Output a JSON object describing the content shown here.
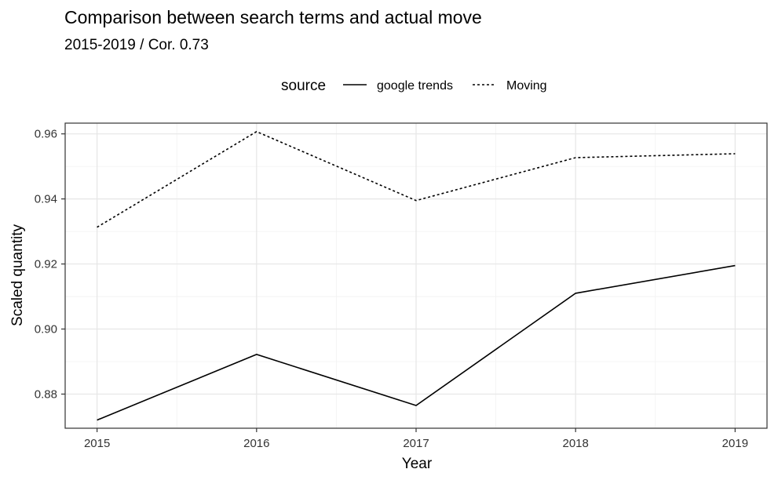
{
  "chart_data": {
    "type": "line",
    "title": "Comparison between search terms and actual move",
    "subtitle": "2015-2019 / Cor. 0.73",
    "xlabel": "Year",
    "ylabel": "Scaled quantity",
    "x": [
      2015,
      2016,
      2017,
      2018,
      2019
    ],
    "x_tick_labels": [
      "2015",
      "2016",
      "2017",
      "2018",
      "2019"
    ],
    "y_ticks": [
      0.88,
      0.9,
      0.92,
      0.94,
      0.96
    ],
    "y_tick_labels": [
      "0.88",
      "0.90",
      "0.92",
      "0.94",
      "0.96"
    ],
    "xlim": [
      2014.8,
      2019.2
    ],
    "ylim": [
      0.8695,
      0.9633
    ],
    "grid": true,
    "legend": {
      "title": "source",
      "position": "top"
    },
    "series": [
      {
        "name": "google trends",
        "line_style": "solid",
        "values": [
          0.872,
          0.8922,
          0.8765,
          0.911,
          0.9195
        ]
      },
      {
        "name": "Moving",
        "line_style": "dotted",
        "values": [
          0.9313,
          0.9607,
          0.9395,
          0.9527,
          0.9539
        ]
      }
    ]
  }
}
